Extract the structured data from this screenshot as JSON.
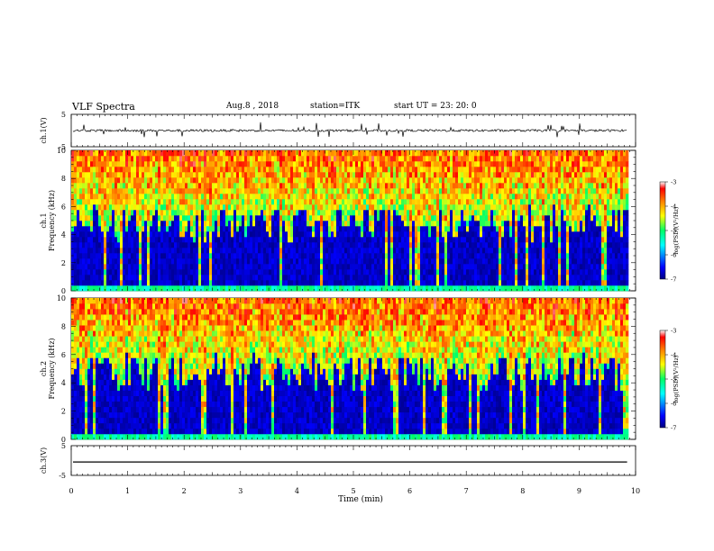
{
  "header": {
    "title": "VLF Spectra",
    "date": "Aug.8 , 2018",
    "station": "station=ITK",
    "start": "start UT = 23: 20: 0"
  },
  "chart_data": [
    {
      "type": "line",
      "panel": "ch1-waveform",
      "ylabel": "ch.1(V)",
      "ylim": [
        -5,
        5
      ],
      "yticks": [
        "5",
        "-5"
      ],
      "baseline": 0,
      "x_unit": "min"
    },
    {
      "type": "heatmap",
      "panel": "ch1-spectrogram",
      "ylabel": "ch.1\nFrequency (kHz)",
      "ylim": [
        0,
        10
      ],
      "yticks": [
        "0",
        "2",
        "4",
        "6",
        "8",
        "10"
      ],
      "colorbar": {
        "label": "log(PSD)(V²/Hz)",
        "range": [
          -7,
          -3
        ],
        "ticks": [
          "-3",
          "-4",
          "-5",
          "-6",
          "-7"
        ],
        "colormap": [
          "#000080",
          "#0000ff",
          "#00ffff",
          "#00ff66",
          "#ffff00",
          "#ff8000",
          "#ff0000",
          "#ffffff"
        ]
      }
    },
    {
      "type": "heatmap",
      "panel": "ch2-spectrogram",
      "ylabel": "ch.2\nFrequency (kHz)",
      "ylim": [
        0,
        10
      ],
      "yticks": [
        "0",
        "2",
        "4",
        "6",
        "8",
        "10"
      ],
      "colorbar": {
        "label": "log(PSD)(V²/Hz)",
        "range": [
          -7,
          -3
        ],
        "ticks": [
          "-3",
          "-4",
          "-5",
          "-6",
          "-7"
        ]
      }
    },
    {
      "type": "line",
      "panel": "ch3-waveform",
      "ylabel": "ch.3(V)",
      "ylim": [
        -5,
        5
      ],
      "yticks": [
        "5",
        "-5"
      ],
      "baseline": -1
    }
  ],
  "xaxis": {
    "label": "Time (min)",
    "xlim": [
      0,
      10
    ],
    "ticks": [
      "0",
      "1",
      "2",
      "3",
      "4",
      "5",
      "6",
      "7",
      "8",
      "9",
      "10"
    ]
  }
}
